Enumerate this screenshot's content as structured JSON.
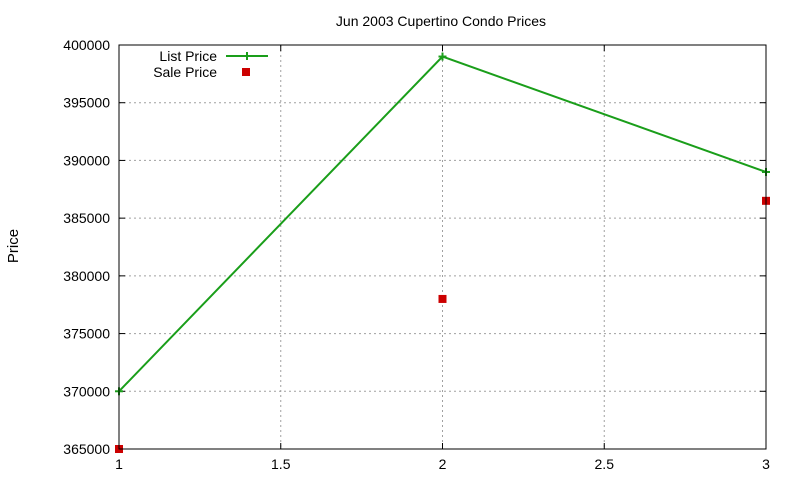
{
  "chart_data": {
    "type": "line",
    "title": "Jun 2003 Cupertino Condo Prices",
    "xlabel": "",
    "ylabel": "Price",
    "xlim": [
      1,
      3
    ],
    "ylim": [
      365000,
      400000
    ],
    "xticks": [
      "1",
      "1.5",
      "2",
      "2.5",
      "3"
    ],
    "yticks": [
      "365000",
      "370000",
      "375000",
      "380000",
      "385000",
      "390000",
      "395000",
      "400000"
    ],
    "grid": true,
    "legend_position": "top-left",
    "series": [
      {
        "name": "List Price",
        "style": "linespoints",
        "marker": "plus",
        "color": "#1a9e1a",
        "points": [
          {
            "x": 1,
            "y": 370000
          },
          {
            "x": 2,
            "y": 399000
          },
          {
            "x": 3,
            "y": 389000
          }
        ]
      },
      {
        "name": "Sale Price",
        "style": "points",
        "marker": "square",
        "color": "#cc0000",
        "points": [
          {
            "x": 1,
            "y": 365000
          },
          {
            "x": 2,
            "y": 378000
          },
          {
            "x": 3,
            "y": 386500
          }
        ]
      }
    ]
  }
}
